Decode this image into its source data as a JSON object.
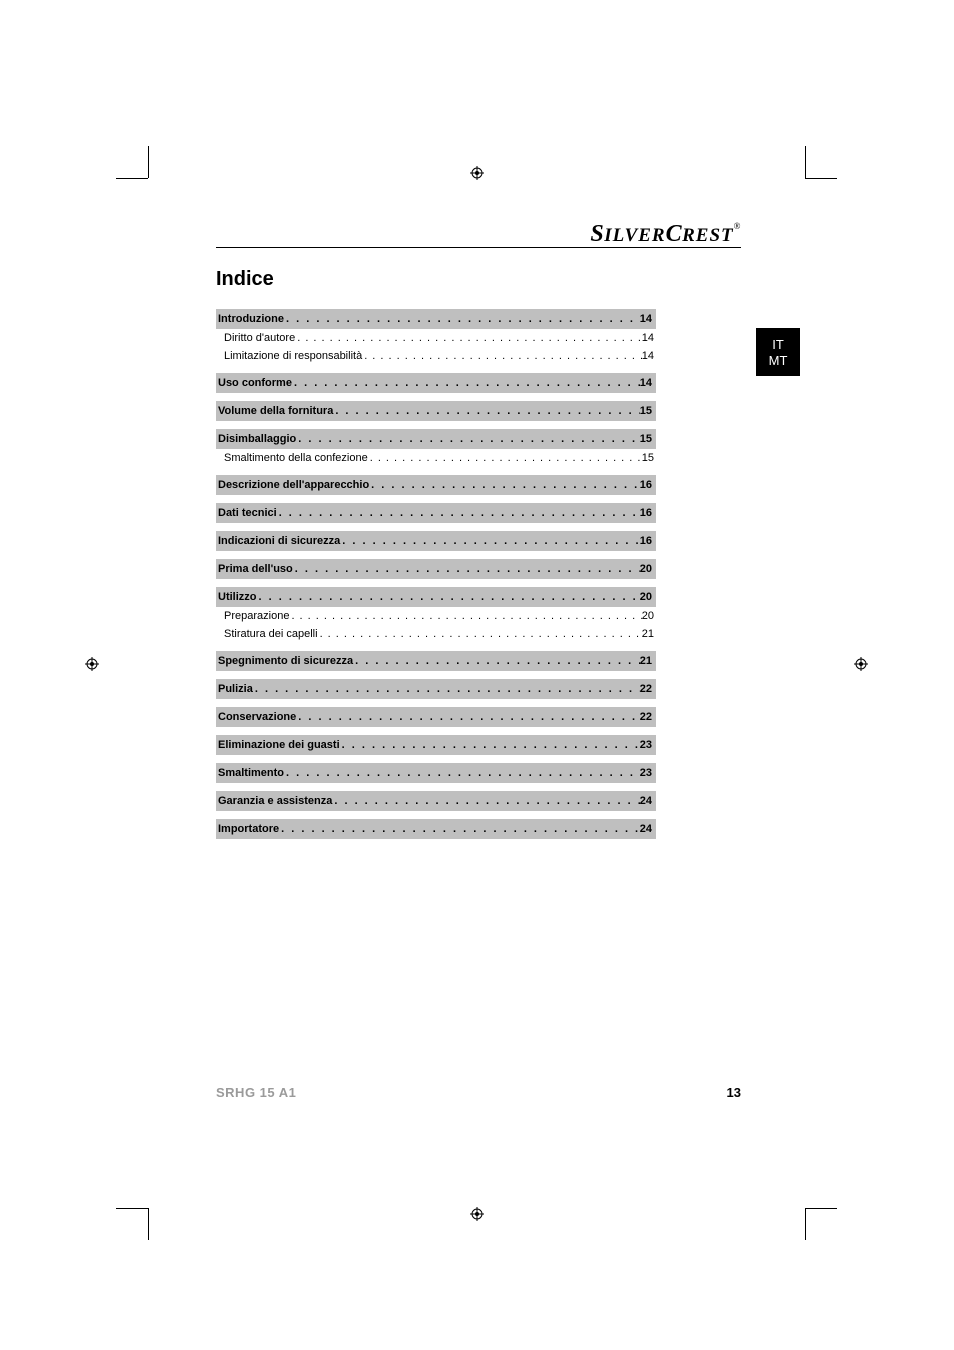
{
  "brand": "SilverCrest",
  "lang_tab": {
    "line1": "IT",
    "line2": "MT"
  },
  "toc_title": "Indice",
  "footer": {
    "model": "SRHG 15 A1",
    "page_number": "13"
  },
  "toc": [
    {
      "type": "section",
      "label": "Introduzione",
      "page": "14"
    },
    {
      "type": "sub",
      "label": "Diritto d'autore",
      "page": "14"
    },
    {
      "type": "sub",
      "label": "Limitazione di responsabilità",
      "page": "14"
    },
    {
      "type": "section",
      "label": "Uso conforme",
      "page": "14"
    },
    {
      "type": "section",
      "label": "Volume della fornitura",
      "page": "15"
    },
    {
      "type": "section",
      "label": "Disimballaggio",
      "page": "15"
    },
    {
      "type": "sub",
      "label": "Smaltimento della confezione",
      "page": "15"
    },
    {
      "type": "section",
      "label": "Descrizione dell'apparecchio",
      "page": "16"
    },
    {
      "type": "section",
      "label": "Dati tecnici",
      "page": "16"
    },
    {
      "type": "section",
      "label": "Indicazioni di sicurezza",
      "page": "16"
    },
    {
      "type": "section",
      "label": "Prima dell'uso",
      "page": "20"
    },
    {
      "type": "section",
      "label": "Utilizzo",
      "page": "20"
    },
    {
      "type": "sub",
      "label": "Preparazione",
      "page": "20"
    },
    {
      "type": "sub",
      "label": "Stiratura dei capelli",
      "page": "21"
    },
    {
      "type": "section",
      "label": "Spegnimento di sicurezza",
      "page": "21"
    },
    {
      "type": "section",
      "label": "Pulizia",
      "page": "22"
    },
    {
      "type": "section",
      "label": "Conservazione",
      "page": "22"
    },
    {
      "type": "section",
      "label": "Eliminazione dei guasti",
      "page": "23"
    },
    {
      "type": "section",
      "label": "Smaltimento",
      "page": "23"
    },
    {
      "type": "section",
      "label": "Garanzia e assistenza",
      "page": "24"
    },
    {
      "type": "section",
      "label": "Importatore",
      "page": "24"
    }
  ],
  "colors": {
    "section_bg": "#bfbfbf",
    "text": "#000000",
    "footer_gray": "#9a9a9a"
  }
}
